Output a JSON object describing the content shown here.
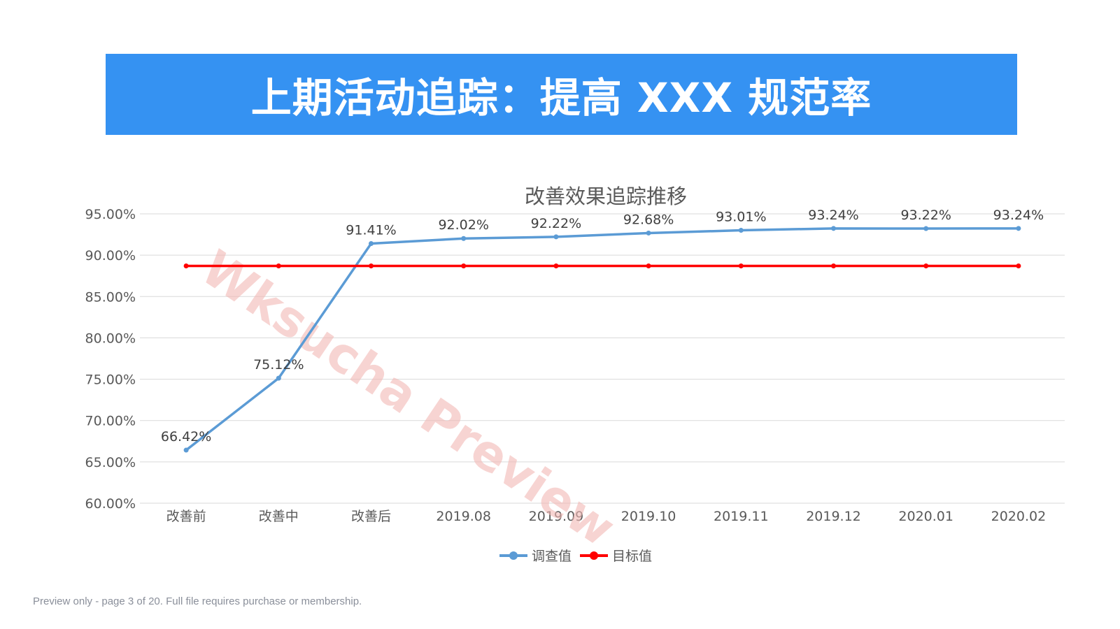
{
  "slide": {
    "title": "上期活动追踪：提高 XXX 规范率",
    "footer": "Preview only - page 3 of 20. Full file requires purchase or membership.",
    "watermark": "Wksucha Preview"
  },
  "colors": {
    "banner": "#3592f2",
    "series_survey": "#5b9bd5",
    "series_target": "#ff0000",
    "watermark": "#f2b8b4"
  },
  "chart_data": {
    "type": "line",
    "title": "改善效果追踪推移",
    "categories": [
      "改善前",
      "改善中",
      "改善后",
      "2019.08",
      "2019.09",
      "2019.10",
      "2019.11",
      "2019.12",
      "2020.01",
      "2020.02"
    ],
    "series": [
      {
        "name": "调查值",
        "values": [
          66.42,
          75.12,
          91.41,
          92.02,
          92.22,
          92.68,
          93.01,
          93.24,
          93.22,
          93.24
        ],
        "data_labels": [
          "66.42%",
          "75.12%",
          "91.41%",
          "92.02%",
          "92.22%",
          "92.68%",
          "93.01%",
          "93.24%",
          "93.22%",
          "93.24%"
        ]
      },
      {
        "name": "目标值",
        "values": [
          88.7,
          88.7,
          88.7,
          88.7,
          88.7,
          88.7,
          88.7,
          88.7,
          88.7,
          88.7
        ]
      }
    ],
    "ylim": [
      60,
      95
    ],
    "yticks": [
      60,
      65,
      70,
      75,
      80,
      85,
      90,
      95
    ],
    "ytick_labels": [
      "60.00%",
      "65.00%",
      "70.00%",
      "75.00%",
      "80.00%",
      "85.00%",
      "90.00%",
      "95.00%"
    ],
    "grid": true,
    "legend": "bottom"
  }
}
